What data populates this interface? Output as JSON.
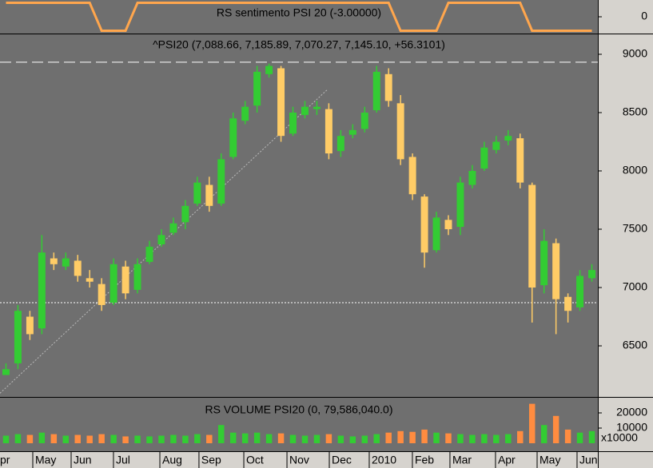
{
  "chart_data": [
    {
      "type": "line",
      "title": "RS sentimento PSI 20 (-3.00000)",
      "x": [
        0,
        1,
        2,
        3,
        4,
        5,
        6,
        7,
        8,
        9,
        10,
        11,
        12,
        13,
        14,
        15,
        16,
        17,
        18,
        19,
        20,
        21,
        22,
        23,
        24,
        25,
        26,
        27,
        28,
        29,
        30,
        31,
        32,
        33,
        34,
        35,
        36,
        37,
        38,
        39,
        40,
        41,
        42,
        43,
        44,
        45,
        46,
        47,
        48,
        49
      ],
      "xlim": [
        -0.5,
        49.5
      ],
      "ylim": [
        -1.2,
        1.2
      ],
      "yticks": [
        0
      ],
      "series": [
        {
          "color": "#ffa64d",
          "values": [
            1,
            1,
            1,
            1,
            1,
            1,
            1,
            1,
            -1,
            -1,
            -1,
            1,
            1,
            1,
            1,
            1,
            1,
            1,
            1,
            1,
            1,
            1,
            1,
            1,
            1,
            1,
            1,
            1,
            1,
            1,
            1,
            1,
            1,
            -1,
            -1,
            -1,
            -1,
            1,
            1,
            1,
            1,
            1,
            1,
            1,
            -1,
            -1,
            -1,
            -1,
            -1,
            -1
          ]
        }
      ]
    },
    {
      "type": "candlestick",
      "title": "^PSI20 (7,088.66, 7,185.89, 7,070.27, 7,145.10, +56.3101)",
      "x": [
        0,
        1,
        2,
        3,
        4,
        5,
        6,
        7,
        8,
        9,
        10,
        11,
        12,
        13,
        14,
        15,
        16,
        17,
        18,
        19,
        20,
        21,
        22,
        23,
        24,
        25,
        26,
        27,
        28,
        29,
        30,
        31,
        32,
        33,
        34,
        35,
        36,
        37,
        38,
        39,
        40,
        41,
        42,
        43,
        44,
        45,
        46,
        47,
        48,
        49
      ],
      "open": [
        6250,
        6350,
        6750,
        6650,
        7250,
        7180,
        7230,
        7080,
        7030,
        6870,
        7180,
        6980,
        7220,
        7370,
        7470,
        7560,
        7720,
        7880,
        7720,
        8120,
        8430,
        8560,
        8830,
        8880,
        8320,
        8480,
        8530,
        8530,
        8170,
        8310,
        8360,
        8520,
        8830,
        8580,
        8120,
        7780,
        7320,
        7580,
        7520,
        7880,
        8020,
        8180,
        8260,
        8280,
        7880,
        7020,
        7380,
        6920,
        6830,
        7080
      ],
      "high": [
        6350,
        6850,
        6800,
        7450,
        7300,
        7300,
        7280,
        7150,
        7080,
        7250,
        7230,
        7250,
        7400,
        7500,
        7600,
        7750,
        7950,
        7950,
        8150,
        8500,
        8600,
        8900,
        8920,
        8900,
        8550,
        8600,
        8600,
        8580,
        8350,
        8400,
        8550,
        8900,
        8880,
        8650,
        8150,
        7800,
        7650,
        7620,
        7950,
        8050,
        8250,
        8300,
        8350,
        8320,
        7900,
        7500,
        7420,
        6950,
        7150,
        7200
      ],
      "low": [
        6250,
        6300,
        6550,
        6600,
        7150,
        7150,
        7050,
        7000,
        6800,
        6850,
        6900,
        6950,
        7200,
        7350,
        7450,
        7500,
        7700,
        7650,
        7700,
        8100,
        8400,
        8500,
        8800,
        8250,
        8300,
        8450,
        8480,
        8100,
        8120,
        8280,
        8330,
        8500,
        8550,
        8050,
        7750,
        7170,
        7300,
        7450,
        7450,
        7850,
        8000,
        8150,
        8220,
        7850,
        6700,
        6950,
        6600,
        6700,
        6800,
        7050
      ],
      "close": [
        6300,
        6800,
        6600,
        7300,
        7200,
        7250,
        7100,
        7050,
        6850,
        7200,
        6950,
        7200,
        7350,
        7450,
        7550,
        7700,
        7900,
        7700,
        8100,
        8450,
        8550,
        8850,
        8900,
        8300,
        8500,
        8550,
        8550,
        8150,
        8300,
        8350,
        8500,
        8850,
        8600,
        8100,
        7800,
        7300,
        7600,
        7500,
        7900,
        8000,
        8200,
        8250,
        8300,
        7900,
        7000,
        7400,
        6900,
        6800,
        7100,
        7150
      ],
      "up_color": "#33cc33",
      "down_color": "#ffcc66",
      "xlim": [
        -0.5,
        49.5
      ],
      "ylim": [
        6062,
        9171
      ],
      "yticks": [
        6500,
        7000,
        7500,
        8000,
        8500,
        9000
      ],
      "xticks": [
        {
          "value": -0.7,
          "label": "pr"
        },
        {
          "value": 2.24,
          "label": "May"
        },
        {
          "value": 5.45,
          "label": "Jun"
        },
        {
          "value": 8.99,
          "label": "Jul"
        },
        {
          "value": 12.87,
          "label": "Aug"
        },
        {
          "value": 16.14,
          "label": "Sep"
        },
        {
          "value": 19.89,
          "label": "Oct"
        },
        {
          "value": 23.5,
          "label": "Nov"
        },
        {
          "value": 27.04,
          "label": "Dec"
        },
        {
          "value": 30.38,
          "label": "2010"
        },
        {
          "value": 33.99,
          "label": "Feb"
        },
        {
          "value": 37.13,
          "label": "Mar"
        },
        {
          "value": 40.94,
          "label": "Apr"
        },
        {
          "value": 44.42,
          "label": "May"
        },
        {
          "value": 47.76,
          "label": "Jun"
        }
      ],
      "reference_lines": [
        {
          "value": 8932,
          "dash": "dashed"
        },
        {
          "value": 6870,
          "dash": "dotted"
        }
      ],
      "trend_line": {
        "x": [
          -0.7,
          26.9
        ],
        "y": [
          6075,
          8699
        ]
      }
    },
    {
      "type": "bar",
      "title": "RS VOLUME PSI20 (0, 79,586,040.0)",
      "x": [
        0,
        1,
        2,
        3,
        4,
        5,
        6,
        7,
        8,
        9,
        10,
        11,
        12,
        13,
        14,
        15,
        16,
        17,
        18,
        19,
        20,
        21,
        22,
        23,
        24,
        25,
        26,
        27,
        28,
        29,
        30,
        31,
        32,
        33,
        34,
        35,
        36,
        37,
        38,
        39,
        40,
        41,
        42,
        43,
        44,
        45,
        46,
        47,
        48,
        49
      ],
      "values": [
        5000,
        6000,
        5500,
        7000,
        6000,
        5000,
        5500,
        5000,
        6000,
        5500,
        4500,
        5000,
        4500,
        5000,
        5500,
        5000,
        6000,
        5500,
        12000,
        7000,
        6500,
        7000,
        6000,
        6500,
        5500,
        5000,
        5500,
        6000,
        5000,
        4500,
        5000,
        6000,
        7000,
        8000,
        7500,
        9000,
        7000,
        6500,
        6000,
        5500,
        6000,
        5500,
        6000,
        8000,
        26000,
        12000,
        18000,
        9000,
        7000,
        8000
      ],
      "xlim": [
        -0.5,
        49.5
      ],
      "ylim": [
        0,
        30000
      ],
      "yticks": [
        10000,
        20000
      ],
      "unit_label": "x10000"
    }
  ]
}
